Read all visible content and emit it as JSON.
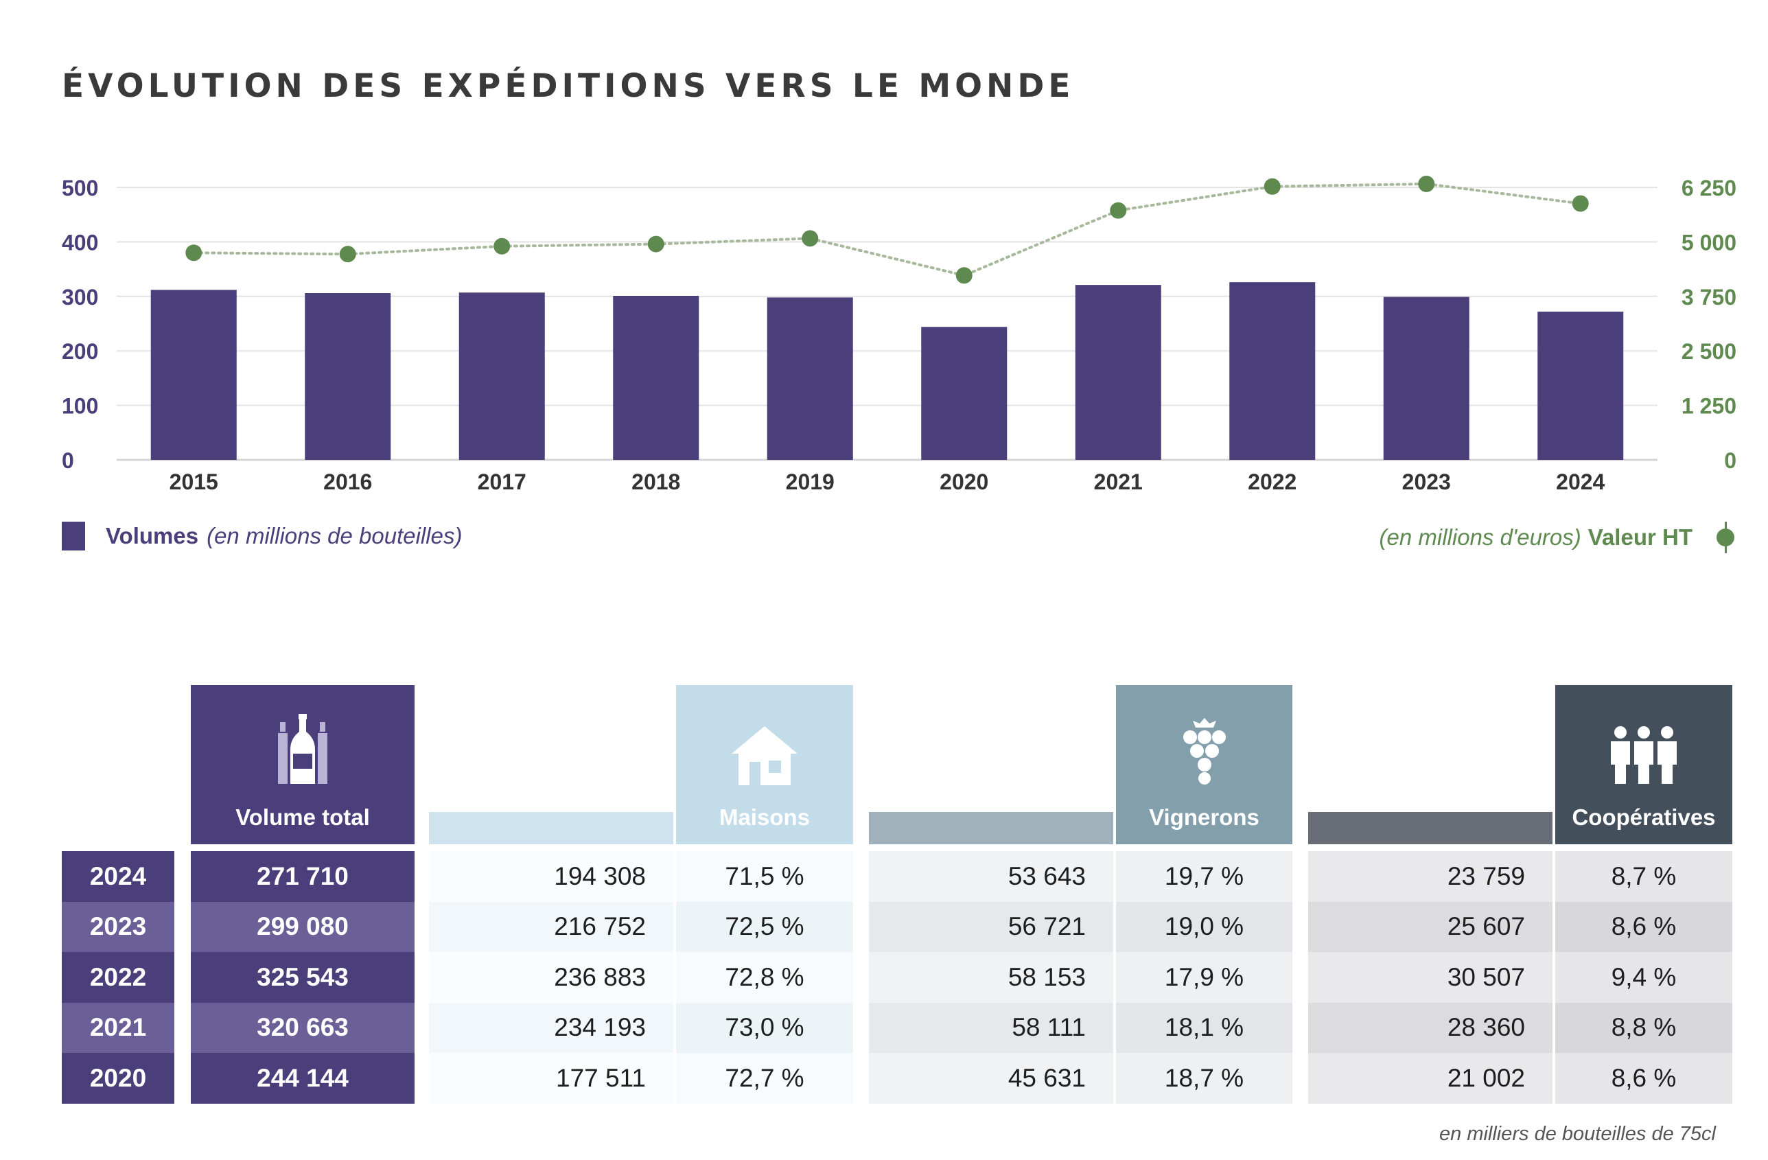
{
  "title": "ÉVOLUTION DES EXPÉDITIONS VERS LE MONDE",
  "colors": {
    "volume_bar": "#4a3f7a",
    "value_line": "#5f8a4f",
    "grid": "#e3e3e3",
    "maisons": "#c3dcea",
    "vignerons": "#839fab",
    "cooperatives": "#444f5c"
  },
  "chart_data": {
    "type": "bar",
    "categories": [
      "2015",
      "2016",
      "2017",
      "2018",
      "2019",
      "2020",
      "2021",
      "2022",
      "2023",
      "2024"
    ],
    "series": [
      {
        "name": "Volumes (en millions de bouteilles)",
        "type": "bar",
        "axis": "left",
        "values": [
          312,
          306,
          307,
          301,
          298,
          244,
          321,
          326,
          299,
          272
        ]
      },
      {
        "name": "Valeur HT (en millions d'euros)",
        "type": "line",
        "axis": "right",
        "values": [
          4750,
          4720,
          4900,
          4950,
          5080,
          4230,
          5720,
          6270,
          6330,
          5880
        ]
      }
    ],
    "y_left": {
      "min": 0,
      "max": 500,
      "ticks": [
        "0",
        "100",
        "200",
        "300",
        "400",
        "500"
      ]
    },
    "y_right": {
      "min": 0,
      "max": 6250,
      "ticks": [
        "0",
        "1 250",
        "2 500",
        "3 750",
        "5 000",
        "6 250"
      ]
    },
    "grid": true
  },
  "legend": {
    "volumes_label": "Volumes",
    "volumes_unit": "(en millions de bouteilles)",
    "value_unit": "(en millions d'euros)",
    "value_label": "Valeur HT"
  },
  "table": {
    "headers": {
      "volume_total": "Volume total",
      "maisons": "Maisons",
      "vignerons": "Vignerons",
      "cooperatives": "Coopératives"
    },
    "icons": {
      "volume_total": "bottles-icon",
      "maisons": "house-icon",
      "vignerons": "grapes-icon",
      "cooperatives": "people-icon"
    },
    "rows": [
      {
        "year": "2024",
        "volume_total": "271 710",
        "maisons": "194 308",
        "maisons_pct": "71,5 %",
        "vignerons": "53 643",
        "vignerons_pct": "19,7 %",
        "cooperatives": "23 759",
        "cooperatives_pct": "8,7 %"
      },
      {
        "year": "2023",
        "volume_total": "299 080",
        "maisons": "216 752",
        "maisons_pct": "72,5 %",
        "vignerons": "56 721",
        "vignerons_pct": "19,0 %",
        "cooperatives": "25 607",
        "cooperatives_pct": "8,6 %"
      },
      {
        "year": "2022",
        "volume_total": "325 543",
        "maisons": "236 883",
        "maisons_pct": "72,8 %",
        "vignerons": "58 153",
        "vignerons_pct": "17,9 %",
        "cooperatives": "30 507",
        "cooperatives_pct": "9,4 %"
      },
      {
        "year": "2021",
        "volume_total": "320 663",
        "maisons": "234 193",
        "maisons_pct": "73,0 %",
        "vignerons": "58 111",
        "vignerons_pct": "18,1 %",
        "cooperatives": "28 360",
        "cooperatives_pct": "8,8 %"
      },
      {
        "year": "2020",
        "volume_total": "244 144",
        "maisons": "177 511",
        "maisons_pct": "72,7 %",
        "vignerons": "45 631",
        "vignerons_pct": "18,7 %",
        "cooperatives": "21 002",
        "cooperatives_pct": "8,6 %"
      }
    ],
    "footnote": "en milliers de bouteilles de 75cl"
  }
}
